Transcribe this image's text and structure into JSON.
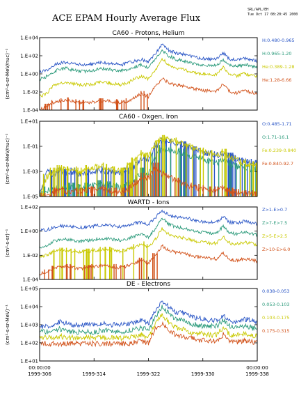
{
  "title": "ACE EPAM Hourly Average Flux",
  "stamp": {
    "line1": "SRL/APL/EH",
    "line2": "Tue Oct 17 08:20:45 2000"
  },
  "x_axis": {
    "ticks": [
      {
        "day": 306,
        "line1": "00:00:00",
        "line2": "1999-306"
      },
      {
        "day": 314,
        "line1": "",
        "line2": "1999-314"
      },
      {
        "day": 322,
        "line1": "",
        "line2": "1999-322"
      },
      {
        "day": 330,
        "line1": "",
        "line2": "1999-330"
      },
      {
        "day": 338,
        "line1": "00:00:00",
        "line2": "1999-338"
      }
    ],
    "range": [
      306,
      338
    ]
  },
  "chart_data": [
    {
      "type": "line",
      "title": "CA60 - Protons, Helium",
      "ylabel": "(cm²-s-sr-MeV/nuc)⁻¹",
      "yscale": "log",
      "ylim_exp": [
        -4,
        4
      ],
      "ytick_labels": [
        "1.E+04",
        "1.E+02",
        "1.E+00",
        "1.E-02",
        "1.E-04"
      ],
      "series": [
        {
          "name": "H:0.480-0.965",
          "color": "#2a56c6",
          "base": 0.6,
          "day_values": [
            0.2,
            0.4,
            0.9,
            1.2,
            1.3,
            1.1,
            1.0,
            1.0,
            1.1,
            1.3,
            1.2,
            1.1,
            1.0,
            1.2,
            1.4,
            1.6,
            1.3,
            2.2,
            3.3,
            2.6,
            2.3,
            2.2,
            2.0,
            1.8,
            1.7,
            1.6,
            1.6,
            2.3,
            1.6,
            1.5,
            1.7,
            1.6,
            1.4
          ]
        },
        {
          "name": "H:0.965-1.20",
          "color": "#2a9a7a",
          "base": 0,
          "day_values": [
            -0.6,
            -0.3,
            0.2,
            0.5,
            0.6,
            0.4,
            0.3,
            0.3,
            0.4,
            0.6,
            0.5,
            0.4,
            0.3,
            0.5,
            0.8,
            1.0,
            0.7,
            1.6,
            2.6,
            2.0,
            1.6,
            1.5,
            1.3,
            1.1,
            1.0,
            0.9,
            0.9,
            1.6,
            0.9,
            0.8,
            1.0,
            0.9,
            0.7
          ]
        },
        {
          "name": "He:0.389-1.28",
          "color": "#c9c900",
          "base": -1,
          "day_values": [
            -2.5,
            -2.2,
            -1.3,
            -1.0,
            -0.9,
            -1.1,
            -1.2,
            -1.2,
            -1.1,
            -0.9,
            -1.0,
            -1.1,
            -1.2,
            -1.0,
            -0.5,
            -0.3,
            -0.6,
            0.4,
            1.7,
            1.0,
            0.6,
            0.5,
            0.3,
            0.1,
            0.0,
            -0.1,
            -0.1,
            0.8,
            -0.1,
            -0.2,
            0.0,
            -0.1,
            -0.3
          ]
        },
        {
          "name": "He:1.28-6.66",
          "color": "#d2521a",
          "base": -3,
          "day_values": [
            -4.0,
            -3.6,
            -3.2,
            -3.0,
            -2.9,
            -3.1,
            -3.2,
            -3.2,
            -3.1,
            -3.0,
            -3.0,
            -3.1,
            -3.2,
            -3.0,
            -2.6,
            -2.2,
            -2.5,
            -1.4,
            -0.5,
            -1.0,
            -1.2,
            -1.3,
            -1.5,
            -1.7,
            -1.8,
            -1.9,
            -1.9,
            -1.1,
            -2.0,
            -2.1,
            -1.9,
            -2.0,
            -2.2
          ]
        }
      ]
    },
    {
      "type": "line",
      "title": "CA60 - Oxgen, Iron",
      "ylabel": "(cm²-s-sr-MeV/nuc)⁻¹",
      "yscale": "log",
      "ylim_exp": [
        -5,
        1
      ],
      "ytick_labels": [
        "1.E+01",
        "1.E-01",
        "1.E-03",
        "1.E-05",
        "1.E-01",
        "1.E-03",
        "1.E-05"
      ],
      "series": [
        {
          "name": "O:0.485-1.71",
          "color": "#2a56c6",
          "day_values": [
            -5.0,
            -3.0,
            -3.2,
            -3.0,
            -3.1,
            -3.0,
            -3.2,
            -3.1,
            -3.0,
            -2.9,
            -3.0,
            -3.1,
            -3.2,
            -3.0,
            -2.6,
            -2.0,
            -2.2,
            -1.0,
            -0.6,
            -0.7,
            -0.8,
            -0.9,
            -1.1,
            -1.3,
            -1.5,
            -1.6,
            -1.7,
            -1.6,
            -1.8,
            -2.0,
            -2.2,
            -2.3,
            -2.4
          ]
        },
        {
          "name": "O:1.71-16.1",
          "color": "#2a9a7a",
          "day_values": [
            -5.0,
            -4.5,
            -4.4,
            -4.3,
            -4.2,
            -4.2,
            -4.3,
            -4.2,
            -4.1,
            -4.0,
            -4.1,
            -4.2,
            -4.3,
            -4.0,
            -3.6,
            -3.0,
            -3.2,
            -1.8,
            -1.2,
            -1.3,
            -1.4,
            -1.5,
            -1.7,
            -1.9,
            -2.0,
            -2.2,
            -2.3,
            -2.1,
            -2.4,
            -2.6,
            -2.7,
            -2.8,
            -2.9
          ]
        },
        {
          "name": "Fe:0.239-0.840",
          "color": "#c9c900",
          "day_values": [
            -5.0,
            -3.5,
            -3.0,
            -2.8,
            -2.9,
            -2.9,
            -3.0,
            -2.8,
            -2.7,
            -2.6,
            -2.7,
            -2.9,
            -3.0,
            -2.6,
            -2.2,
            -1.6,
            -1.8,
            -0.8,
            -0.4,
            -0.5,
            -0.6,
            -0.8,
            -1.0,
            -1.2,
            -1.4,
            -1.6,
            -1.7,
            -1.5,
            -1.8,
            -2.1,
            -2.3,
            -2.5,
            -2.6
          ]
        },
        {
          "name": "Fe:0.840-92.7",
          "color": "#d2521a",
          "day_values": [
            -5.0,
            -5.0,
            -4.6,
            -4.5,
            -4.6,
            -4.6,
            -4.6,
            -4.5,
            -4.5,
            -4.4,
            -4.5,
            -4.6,
            -4.6,
            -4.4,
            -4.0,
            -3.4,
            -3.6,
            -2.6,
            -3.2,
            -3.4,
            -3.8,
            -4.0,
            -4.2,
            -4.3,
            -4.4,
            -4.5,
            -4.5,
            -4.4,
            -4.6,
            -4.7,
            -4.8,
            -4.8,
            -4.9
          ]
        }
      ]
    },
    {
      "type": "line",
      "title": "WARTD - Ions",
      "ylabel": "(cm²-s-sr)⁻¹",
      "yscale": "log",
      "ylim_exp": [
        -5,
        3
      ],
      "ytick_labels": [
        "1.E+02",
        "1.E+00",
        "1.E-02",
        "1.E-04"
      ],
      "series": [
        {
          "name": "Z>1-E>0.7",
          "color": "#2a56c6",
          "day_values": [
            0.5,
            0.4,
            0.8,
            0.9,
            0.9,
            0.8,
            0.7,
            0.8,
            0.9,
            1.0,
            1.0,
            0.9,
            0.8,
            1.0,
            1.2,
            1.3,
            1.1,
            1.8,
            2.6,
            2.1,
            1.9,
            1.8,
            1.7,
            1.5,
            1.4,
            1.3,
            1.3,
            1.9,
            1.3,
            1.2,
            1.4,
            1.3,
            1.1
          ]
        },
        {
          "name": "Z>7-E>7.5",
          "color": "#2a9a7a",
          "day_values": [
            -1.5,
            -1.4,
            -0.8,
            -0.6,
            -0.6,
            -0.7,
            -0.8,
            -0.7,
            -0.6,
            -0.5,
            -0.5,
            -0.6,
            -0.7,
            -0.5,
            -0.2,
            0.0,
            -0.3,
            0.6,
            1.8,
            1.1,
            0.8,
            0.7,
            0.5,
            0.3,
            0.2,
            0.1,
            0.1,
            0.9,
            0.1,
            0.0,
            0.2,
            0.1,
            -0.1
          ]
        },
        {
          "name": "Z>5-E>2.5",
          "color": "#c9c900",
          "day_values": [
            -2.6,
            -2.3,
            -2.0,
            -1.8,
            -1.8,
            -1.9,
            -2.0,
            -1.9,
            -1.8,
            -1.7,
            -1.7,
            -1.8,
            -1.9,
            -1.7,
            -1.4,
            -1.1,
            -1.4,
            -0.6,
            0.6,
            0.0,
            -0.3,
            -0.4,
            -0.6,
            -0.8,
            -0.9,
            -1.0,
            -1.0,
            -0.3,
            -1.0,
            -1.1,
            -0.9,
            -1.0,
            -1.2
          ]
        },
        {
          "name": "Z>10-E>6.0",
          "color": "#d2521a",
          "day_values": [
            -4.4,
            -4.2,
            -3.8,
            -3.6,
            -3.6,
            -3.7,
            -3.8,
            -3.7,
            -3.6,
            -3.5,
            -3.5,
            -3.6,
            -3.7,
            -3.5,
            -3.2,
            -2.9,
            -3.2,
            -2.4,
            -1.3,
            -1.8,
            -2.0,
            -2.1,
            -2.3,
            -2.5,
            -2.6,
            -2.7,
            -2.7,
            -2.1,
            -2.8,
            -2.9,
            -2.7,
            -2.8,
            -3.0
          ]
        }
      ]
    },
    {
      "type": "line",
      "title": "DE - Electrons",
      "ylabel": "(cm²-s-sr-MeV)⁻¹",
      "yscale": "log",
      "ylim_exp": [
        0,
        5
      ],
      "ytick_labels": [
        "1.E+05",
        "1.E+04",
        "1.E+03",
        "1.E+02",
        "1.E+01"
      ],
      "series": [
        {
          "name": "0.038-0.053",
          "color": "#2a56c6",
          "day_values": [
            2.4,
            2.4,
            2.5,
            2.7,
            2.6,
            2.5,
            2.5,
            2.5,
            2.5,
            2.6,
            2.5,
            2.5,
            2.5,
            2.6,
            2.7,
            2.8,
            2.6,
            3.4,
            4.2,
            3.7,
            3.4,
            3.3,
            3.1,
            3.0,
            2.9,
            2.8,
            2.8,
            3.2,
            2.8,
            2.7,
            2.9,
            2.8,
            2.7
          ]
        },
        {
          "name": "0.053-0.103",
          "color": "#2a9a7a",
          "day_values": [
            2.0,
            2.0,
            2.1,
            2.2,
            2.1,
            2.0,
            2.0,
            2.0,
            2.0,
            2.1,
            2.1,
            2.0,
            2.0,
            2.1,
            2.2,
            2.3,
            2.1,
            3.0,
            3.8,
            3.3,
            2.9,
            2.8,
            2.6,
            2.5,
            2.4,
            2.4,
            2.4,
            2.8,
            2.4,
            2.3,
            2.4,
            2.3,
            2.2
          ]
        },
        {
          "name": "0.103-0.175",
          "color": "#c9c900",
          "day_values": [
            1.6,
            1.6,
            1.6,
            1.7,
            1.6,
            1.6,
            1.6,
            1.6,
            1.6,
            1.6,
            1.6,
            1.6,
            1.6,
            1.6,
            1.7,
            1.8,
            1.6,
            2.6,
            3.2,
            2.7,
            2.3,
            2.2,
            2.0,
            1.9,
            1.9,
            1.8,
            1.8,
            2.3,
            1.8,
            1.8,
            1.9,
            1.8,
            1.7
          ]
        },
        {
          "name": "0.175-0.315",
          "color": "#d2521a",
          "day_values": [
            1.2,
            1.2,
            1.2,
            1.2,
            1.2,
            1.2,
            1.2,
            1.2,
            1.2,
            1.2,
            1.2,
            1.2,
            1.2,
            1.2,
            1.3,
            1.4,
            1.2,
            2.2,
            2.6,
            2.1,
            1.8,
            1.7,
            1.6,
            1.5,
            1.4,
            1.4,
            1.4,
            1.8,
            1.4,
            1.3,
            1.4,
            1.3,
            1.3
          ]
        }
      ]
    }
  ]
}
